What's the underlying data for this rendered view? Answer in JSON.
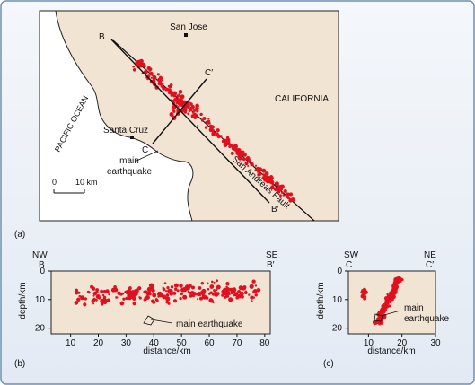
{
  "colors": {
    "land": "#f2e4d3",
    "sea": "#ffffff",
    "quake": "#e0101e",
    "frame_bg": "#e8eef5",
    "border": "#6d8fb3",
    "ink": "#111111"
  },
  "map": {
    "panel_label": "(a)",
    "city_san_jose": "San Jose",
    "city_santa_cruz": "Santa Cruz",
    "region_label": "CALIFORNIA",
    "ocean_label": "PACIFIC OCEAN",
    "fault_label": "San Andreas Fault",
    "main_quake_line1": "main",
    "main_quake_line2": "earthquake",
    "section_b": "B",
    "section_b_prime": "B′",
    "section_c": "C",
    "section_c_prime": "C′",
    "scale_zero": "0",
    "scale_ten": "10 km"
  },
  "section_b": {
    "panel_label": "(b)",
    "nw": "NW",
    "se": "SE",
    "end_left": "B",
    "end_right": "B′",
    "ylabel": "depth/km",
    "xlabel": "distance/km",
    "annotation": "main earthquake",
    "y_ticks": [
      "0",
      "10",
      "20"
    ],
    "x_ticks": [
      "10",
      "20",
      "30",
      "40",
      "50",
      "60",
      "70",
      "80"
    ],
    "x_range": [
      3,
      82
    ],
    "y_range": [
      0,
      22
    ]
  },
  "section_c": {
    "panel_label": "(c)",
    "sw": "SW",
    "ne": "NE",
    "end_left": "C",
    "end_right": "C′",
    "ylabel": "depth/km",
    "xlabel": "distance/km",
    "annotation_line1": "main",
    "annotation_line2": "earthquake",
    "y_ticks": [
      "0",
      "10",
      "20"
    ],
    "x_ticks": [
      "10",
      "20",
      "30"
    ],
    "x_range": [
      4,
      30
    ],
    "y_range": [
      0,
      22
    ]
  }
}
